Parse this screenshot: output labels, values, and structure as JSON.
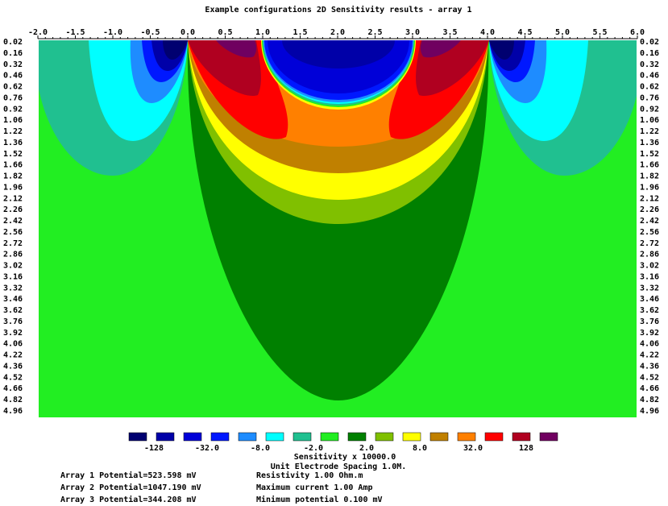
{
  "title": "Example configurations 2D Sensitivity results - array 1",
  "x_axis": {
    "labels": [
      "-2.0",
      "-1.5",
      "-1.0",
      "-0.5",
      "0.0",
      "0.5",
      "1.0",
      "1.5",
      "2.0",
      "2.5",
      "3.0",
      "3.5",
      "4.0",
      "4.5",
      "5.0",
      "5.5",
      "6.0"
    ]
  },
  "depth_axis": {
    "labels": [
      "0.02",
      "0.16",
      "0.32",
      "0.46",
      "0.62",
      "0.76",
      "0.92",
      "1.06",
      "1.22",
      "1.36",
      "1.52",
      "1.66",
      "1.82",
      "1.96",
      "2.12",
      "2.26",
      "2.42",
      "2.56",
      "2.72",
      "2.86",
      "3.02",
      "3.16",
      "3.32",
      "3.46",
      "3.62",
      "3.76",
      "3.92",
      "4.06",
      "4.22",
      "4.36",
      "4.52",
      "4.66",
      "4.82",
      "4.96"
    ]
  },
  "legend": {
    "colors": [
      "#000070",
      "#0000a8",
      "#0000d8",
      "#0018ff",
      "#1e8cff",
      "#00ffff",
      "#20c090",
      "#22ee22",
      "#008000",
      "#80c000",
      "#ffff00",
      "#c08000",
      "#ff8000",
      "#ff0000",
      "#b00020",
      "#700060"
    ],
    "labels": [
      "-128",
      "-32.0",
      "-8.0",
      "-2.0",
      "2.0",
      "8.0",
      "32.0",
      "128"
    ],
    "caption": "Sensitivity x 10000.0",
    "subcaption": "Unit Electrode Spacing 1.0M."
  },
  "info": {
    "left": [
      "Array 1 Potential=523.598 mV",
      "Array 2 Potential=1047.190 mV",
      "Array 3 Potential=344.208 mV"
    ],
    "right": [
      "Resistivity 1.00 Ohm.m",
      "Maximum current 1.00 Amp",
      "Minimum potential 0.100 mV"
    ]
  }
}
